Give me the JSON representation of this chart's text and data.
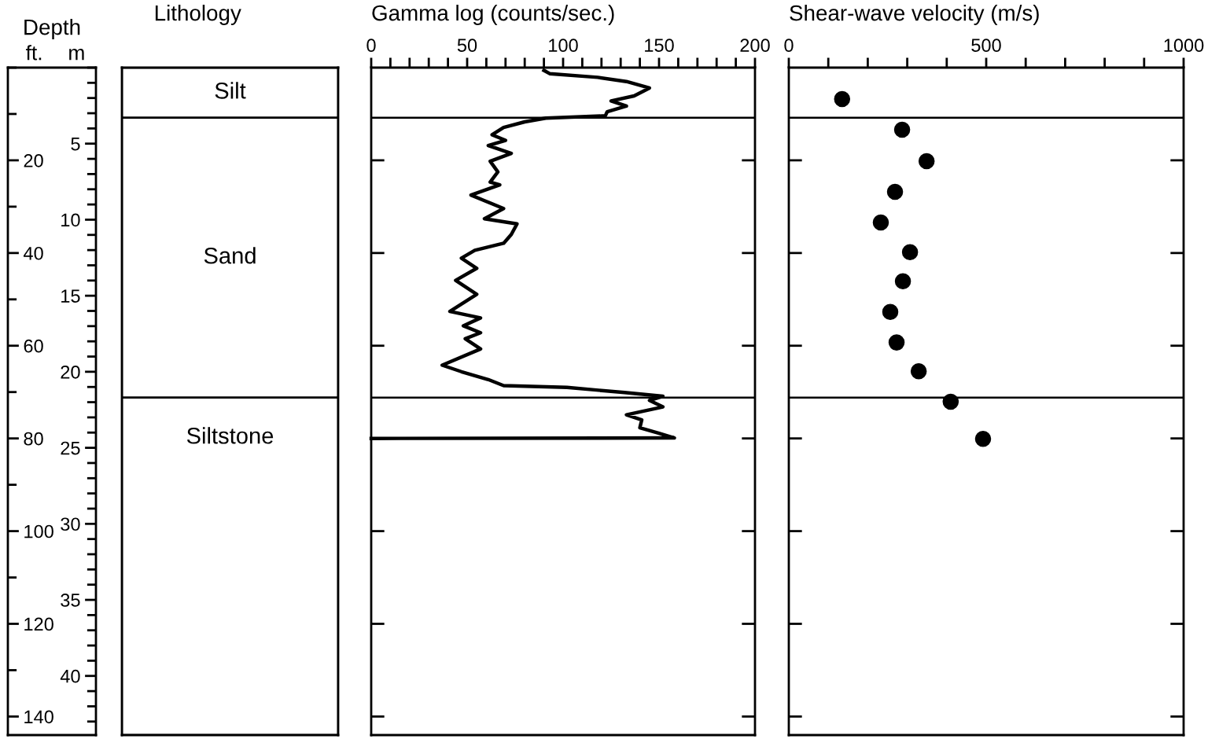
{
  "chart_data": [
    {
      "type": "bar",
      "stacked": true,
      "title": "Lithology",
      "annotations": [
        "Depth"
      ],
      "ylabel": "ft.",
      "y2label": "m",
      "categories": [
        null
      ],
      "ylim": [
        144,
        0
      ],
      "y2lim": [
        43.89,
        0
      ],
      "yticks": [
        20,
        40,
        60,
        80,
        100,
        120,
        140
      ],
      "y2ticks": [
        5,
        10,
        15,
        20,
        25,
        30,
        35,
        40
      ],
      "series": [
        {
          "name": "Silt",
          "color": "#ffffff",
          "values": [
            10.8
          ]
        },
        {
          "name": "Sand",
          "color": "#ffffff",
          "values": [
            60.4
          ]
        },
        {
          "name": "Siltstone",
          "color": "#ffffff",
          "values": [
            72.8
          ]
        }
      ]
    },
    {
      "type": "line",
      "orientation": "horizontal",
      "title": "Gamma log (counts/sec.)",
      "xlim": [
        0,
        200
      ],
      "ylim": [
        144,
        0
      ],
      "tick_labels": "x",
      "xticks": [
        0,
        {
          "value": 10,
          "label": null
        },
        {
          "value": 20,
          "label": null
        },
        {
          "value": 30,
          "label": null
        },
        {
          "value": 40,
          "label": null
        },
        50,
        {
          "value": 60,
          "label": null
        },
        {
          "value": 70,
          "label": null
        },
        {
          "value": 80,
          "label": null
        },
        {
          "value": 90,
          "label": null
        },
        100,
        {
          "value": 110,
          "label": null
        },
        {
          "value": 120,
          "label": null
        },
        {
          "value": 130,
          "label": null
        },
        {
          "value": 140,
          "label": null
        },
        150,
        {
          "value": 160,
          "label": null
        },
        {
          "value": 170,
          "label": null
        },
        {
          "value": 180,
          "label": null
        },
        {
          "value": 190,
          "label": null
        },
        200
      ],
      "yticks": [
        {
          "value": 20,
          "label": null
        },
        {
          "value": 40,
          "label": null
        },
        {
          "value": 60,
          "label": null
        },
        {
          "value": 80,
          "label": null
        },
        {
          "value": 100,
          "label": null
        },
        {
          "value": 120,
          "label": null
        },
        {
          "value": 140,
          "label": null
        }
      ],
      "ref_lines": [
        {
          "axis": "y",
          "value": 10.8,
          "color": "#000000"
        },
        {
          "axis": "y",
          "value": 71.2,
          "color": "#000000"
        }
      ],
      "series": [
        {
          "color": "#000000",
          "line_style": "solid",
          "x": [
            0.6,
            1.3,
            2.1,
            3.0,
            4.4,
            6.1,
            7.2,
            8.3,
            9.5,
            10.4,
            10.9,
            11.7,
            12.9,
            14.5,
            15.7,
            16.8,
            18.5,
            20.2,
            22.5,
            24.7,
            25.3,
            27.5,
            28.7,
            30.4,
            32.6,
            33.7,
            36.0,
            37.9,
            39.4,
            41.1,
            43.3,
            45.9,
            48.9,
            52.6,
            54.0,
            55.7,
            57.2,
            58.5,
            60.7,
            64.2,
            65.6,
            67.3,
            68.6,
            69.0,
            70.1,
            70.9,
            71.8,
            73.2,
            74.9,
            76.0,
            77.7,
            78.9,
            79.9,
            80.0
          ],
          "values": [
            90,
            93,
            118,
            133,
            145,
            137,
            125,
            133,
            123,
            122,
            91,
            80,
            69,
            63,
            70,
            61,
            73,
            62,
            66,
            62,
            67,
            52,
            59,
            69,
            59,
            76,
            73,
            69,
            54,
            47,
            55,
            44,
            55,
            41,
            57,
            48,
            57,
            49,
            57,
            37,
            47,
            61,
            69,
            102,
            132,
            152,
            145,
            152,
            133,
            141,
            140,
            150,
            158,
            0
          ]
        }
      ]
    },
    {
      "type": "scatter",
      "orientation": "horizontal",
      "title": "Shear-wave velocity (m/s)",
      "xlim": [
        0,
        1000
      ],
      "ylim": [
        144,
        0
      ],
      "tick_labels": "x",
      "marker": "circle",
      "xticks": [
        0,
        {
          "value": 100,
          "label": null
        },
        {
          "value": 200,
          "label": null
        },
        {
          "value": 300,
          "label": null
        },
        {
          "value": 400,
          "label": null
        },
        500,
        {
          "value": 600,
          "label": null
        },
        {
          "value": 700,
          "label": null
        },
        {
          "value": 800,
          "label": null
        },
        {
          "value": 900,
          "label": null
        },
        1000
      ],
      "yticks": [
        {
          "value": 20,
          "label": null
        },
        {
          "value": 40,
          "label": null
        },
        {
          "value": 60,
          "label": null
        },
        {
          "value": 80,
          "label": null
        },
        {
          "value": 100,
          "label": null
        },
        {
          "value": 120,
          "label": null
        },
        {
          "value": 140,
          "label": null
        }
      ],
      "ref_lines": [
        {
          "axis": "y",
          "value": 10.8,
          "color": "#000000"
        },
        {
          "axis": "y",
          "value": 71.2,
          "color": "#000000"
        }
      ],
      "series": [
        {
          "color": "#000000",
          "x": [
            6.8,
            13.4,
            20.2,
            26.8,
            33.4,
            39.8,
            46.1,
            52.7,
            59.3,
            65.5,
            72.1,
            80.1
          ],
          "values": [
            135,
            287,
            349,
            269,
            233,
            307,
            289,
            257,
            273,
            329,
            410,
            492
          ]
        }
      ]
    }
  ]
}
